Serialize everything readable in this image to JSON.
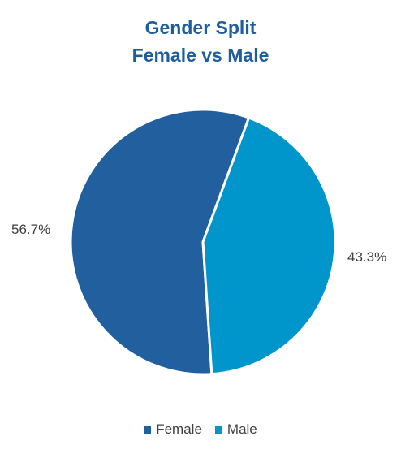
{
  "chart_data": {
    "type": "pie",
    "title": [
      "Gender Split",
      "Female vs Male"
    ],
    "categories": [
      "Female",
      "Male"
    ],
    "values": [
      56.7,
      43.3
    ],
    "data_labels": [
      "56.7%",
      "43.3%"
    ],
    "colors": [
      "#215F9F",
      "#0096CC"
    ],
    "legend": {
      "placement": "bottom",
      "entries": [
        "Female",
        "Male"
      ]
    }
  }
}
